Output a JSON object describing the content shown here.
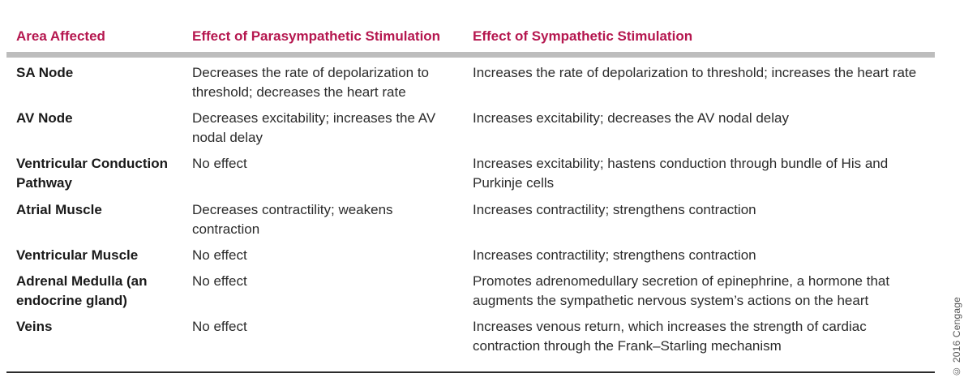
{
  "headers": {
    "area": "Area Affected",
    "parasympathetic": "Effect of Parasympathetic Stimulation",
    "sympathetic": "Effect of Sympathetic Stimulation"
  },
  "rows": [
    {
      "area": "SA Node",
      "para": "Decreases the rate of depolarization to threshold; decreases the heart rate",
      "symp": "Increases the rate of depolarization to threshold; increases the heart rate"
    },
    {
      "area": "AV Node",
      "para": "Decreases excitability; increases the AV nodal delay",
      "symp": "Increases excitability; decreases the AV nodal delay"
    },
    {
      "area": "Ventricular Conduction Pathway",
      "para": "No effect",
      "symp": "Increases excitability; hastens conduction through bundle of His and Purkinje cells"
    },
    {
      "area": "Atrial Muscle",
      "para": "Decreases contractility; weakens contraction",
      "symp": "Increases contractility; strengthens contraction"
    },
    {
      "area": "Ventricular Muscle",
      "para": "No effect",
      "symp": "Increases contractility; strengthens contraction"
    },
    {
      "area": "Adrenal Medulla (an endocrine gland)",
      "para": "No effect",
      "symp": "Promotes adrenomedullary secretion of epinephrine, a hormone that augments the sympathetic nervous system’s actions on the heart"
    },
    {
      "area": "Veins",
      "para": "No effect",
      "symp": "Increases venous return, which increases the strength of cardiac contraction through the Frank–Starling mechanism"
    }
  ],
  "credit": "© 2016 Cengage"
}
